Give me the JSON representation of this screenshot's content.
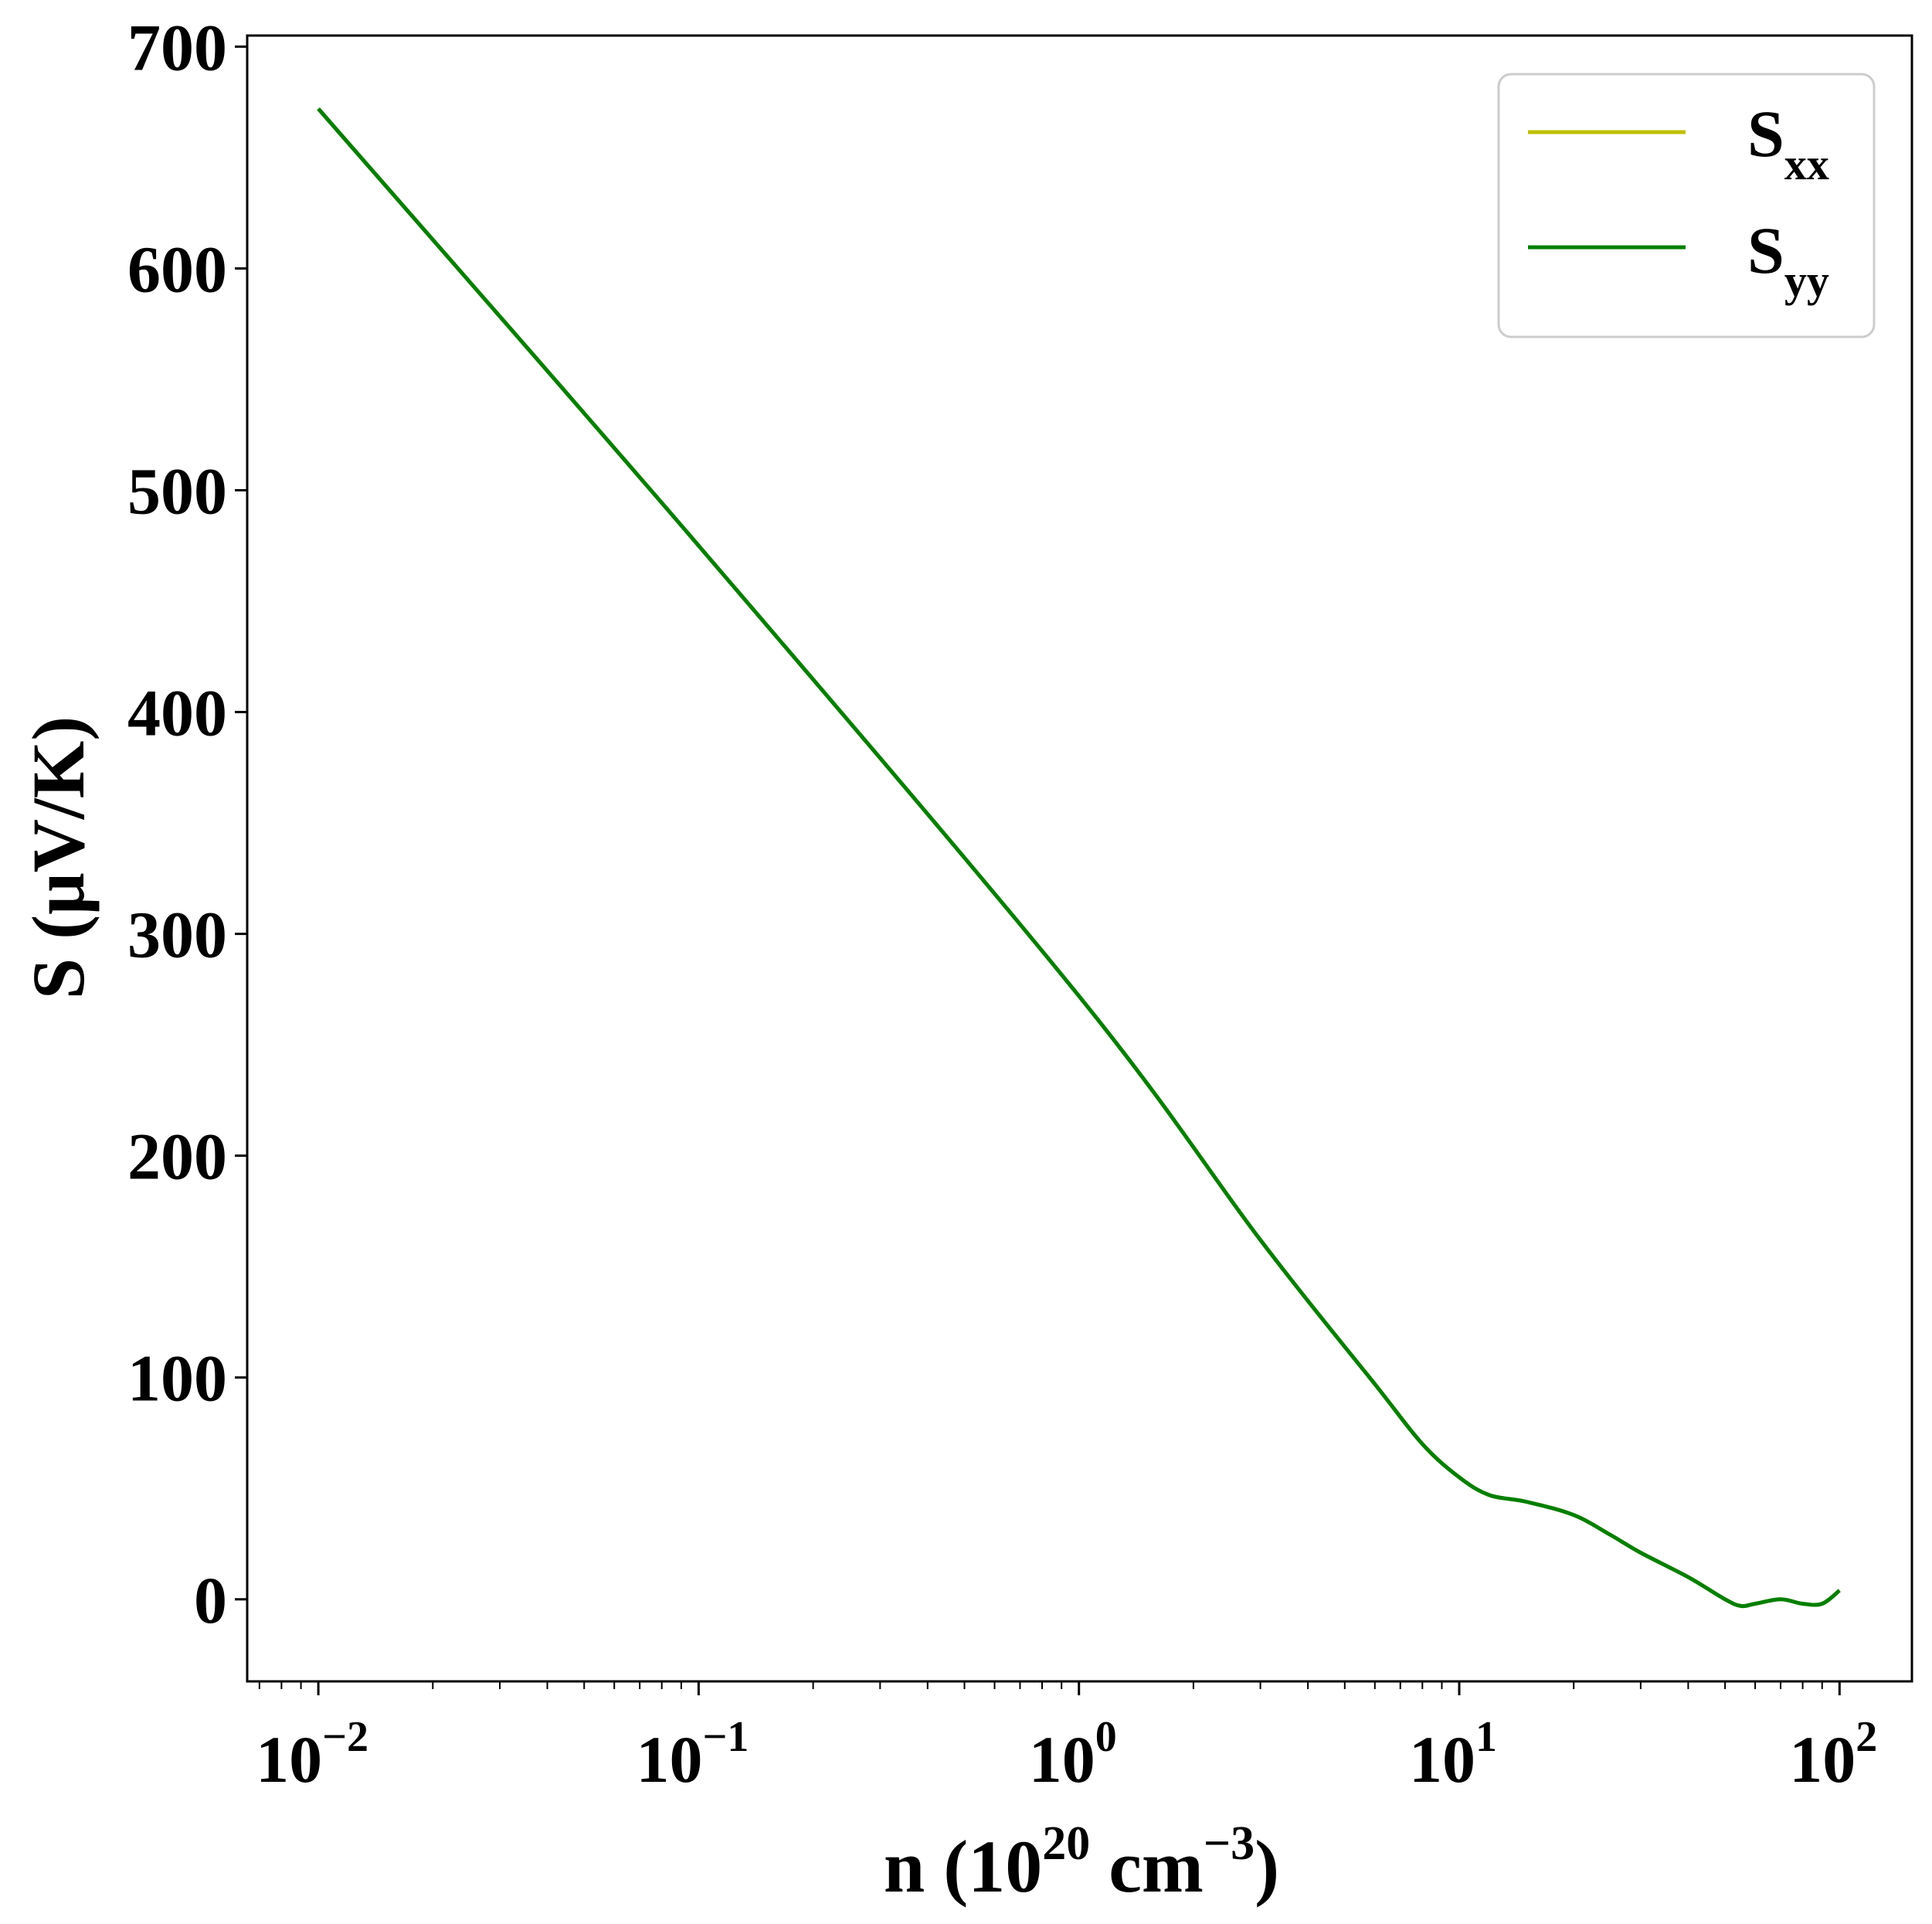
{
  "chart_data": {
    "type": "line",
    "title": "",
    "xlabel": {
      "base": "n (10",
      "sup1": "20",
      "mid": " cm",
      "sup2": "−3",
      "end": ")"
    },
    "ylabel": "S (μV/K)",
    "xscale": "log",
    "xlim": [
      0.0065,
      155
    ],
    "ylim": [
      -37,
      705
    ],
    "yticks": [
      0,
      100,
      200,
      300,
      400,
      500,
      600,
      700
    ],
    "xticks": [
      {
        "value": 0.01,
        "base": "10",
        "exp": "−2"
      },
      {
        "value": 0.1,
        "base": "10",
        "exp": "−1"
      },
      {
        "value": 1,
        "base": "10",
        "exp": "0"
      },
      {
        "value": 10,
        "base": "10",
        "exp": "1"
      },
      {
        "value": 100,
        "base": "10",
        "exp": "2"
      }
    ],
    "grid": false,
    "legend_position": "top-right",
    "series": [
      {
        "name": {
          "base": "S",
          "sub": "xx"
        },
        "color": "#bfbf00",
        "x": [
          0.01,
          0.1,
          1,
          3,
          6,
          8,
          10,
          12,
          15,
          20,
          25,
          30,
          40,
          50,
          55,
          60,
          70,
          80,
          90,
          100
        ],
        "y": [
          672,
          475,
          272,
          162,
          97,
          70,
          55,
          47,
          44,
          38,
          29,
          21,
          10,
          0,
          -3,
          -2,
          0,
          -2,
          -2,
          4
        ]
      },
      {
        "name": {
          "base": "S",
          "sub": "yy"
        },
        "color": "#007f00",
        "x": [
          0.01,
          0.1,
          1,
          3,
          6,
          8,
          10,
          12,
          15,
          20,
          25,
          30,
          40,
          50,
          55,
          60,
          70,
          80,
          90,
          100
        ],
        "y": [
          672,
          475,
          272,
          162,
          97,
          70,
          55,
          47,
          44,
          38,
          29,
          21,
          10,
          0,
          -3,
          -2,
          0,
          -2,
          -2,
          4
        ]
      }
    ]
  }
}
